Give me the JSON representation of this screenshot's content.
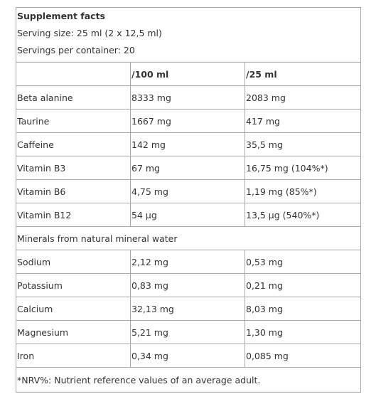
{
  "title": "Supplement facts",
  "serving_size": "Serving size: 25 ml (2 x 12,5 ml)",
  "servings": "Servings per container: 20",
  "table": {
    "columns": [
      "/100 ml",
      "/25 ml"
    ],
    "rows": [
      [
        "Beta alanine",
        "8333 mg",
        "2083 mg"
      ],
      [
        "Taurine",
        "1667 mg",
        "417 mg"
      ],
      [
        "Caffeine",
        "142 mg",
        "35,5 mg"
      ],
      [
        "Vitamin B3",
        "67 mg",
        "16,75 mg (104%*)"
      ],
      [
        "Vitamin B6",
        "4,75 mg",
        "1,19 mg (85%*)"
      ],
      [
        "Vitamin B12",
        "54 µg",
        "13,5 µg (540%*)"
      ]
    ],
    "section": "Minerals from natural mineral water",
    "section_rows": [
      [
        "Sodium",
        "2,12 mg",
        "0,53 mg"
      ],
      [
        "Potassium",
        "0,83 mg",
        "0,21 mg"
      ],
      [
        "Calcium",
        "32,13 mg",
        "8,03 mg"
      ],
      [
        "Magnesium",
        "5,21 mg",
        "1,30 mg"
      ],
      [
        "Iron",
        "0,34 mg",
        "0,085 mg"
      ]
    ]
  },
  "footnote": "*NRV%: Nutrient reference values of an average adult."
}
